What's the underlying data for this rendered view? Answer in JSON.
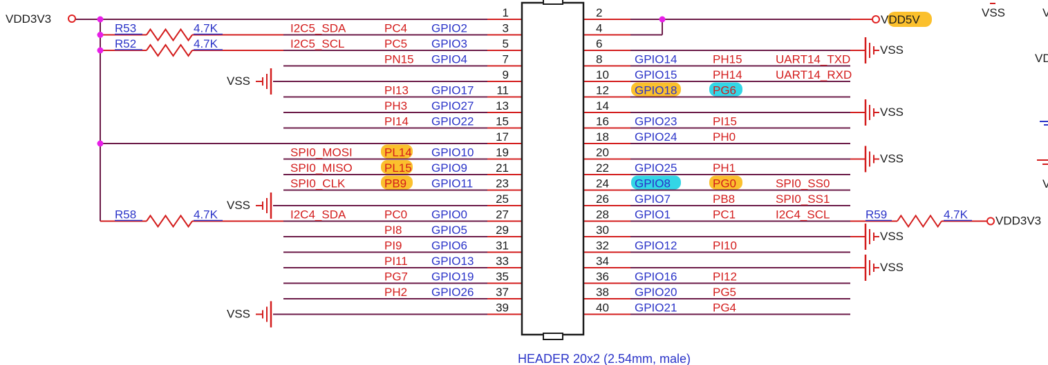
{
  "header": {
    "caption": "HEADER 20x2 (2.54mm, male)",
    "pins_left": [
      {
        "num": "1",
        "fn": "",
        "port": "",
        "gpio": ""
      },
      {
        "num": "3",
        "fn": "I2C5_SDA",
        "port": "PC4",
        "gpio": "GPIO2"
      },
      {
        "num": "5",
        "fn": "I2C5_SCL",
        "port": "PC5",
        "gpio": "GPIO3"
      },
      {
        "num": "7",
        "fn": "",
        "port": "PN15",
        "gpio": "GPIO4"
      },
      {
        "num": "9",
        "fn": "",
        "port": "",
        "gpio": ""
      },
      {
        "num": "11",
        "fn": "",
        "port": "PI13",
        "gpio": "GPIO17"
      },
      {
        "num": "13",
        "fn": "",
        "port": "PH3",
        "gpio": "GPIO27"
      },
      {
        "num": "15",
        "fn": "",
        "port": "PI14",
        "gpio": "GPIO22"
      },
      {
        "num": "17",
        "fn": "",
        "port": "",
        "gpio": ""
      },
      {
        "num": "19",
        "fn": "SPI0_MOSI",
        "port": "PL14",
        "gpio": "GPIO10",
        "port_hl": "orange"
      },
      {
        "num": "21",
        "fn": "SPI0_MISO",
        "port": "PL15",
        "gpio": "GPIO9",
        "port_hl": "orange"
      },
      {
        "num": "23",
        "fn": "SPI0_CLK",
        "port": "PB9",
        "gpio": "GPIO11",
        "port_hl": "orange"
      },
      {
        "num": "25",
        "fn": "",
        "port": "",
        "gpio": ""
      },
      {
        "num": "27",
        "fn": "I2C4_SDA",
        "port": "PC0",
        "gpio": "GPIO0"
      },
      {
        "num": "29",
        "fn": "",
        "port": "PI8",
        "gpio": "GPIO5"
      },
      {
        "num": "31",
        "fn": "",
        "port": "PI9",
        "gpio": "GPIO6"
      },
      {
        "num": "33",
        "fn": "",
        "port": "PI11",
        "gpio": "GPIO13"
      },
      {
        "num": "35",
        "fn": "",
        "port": "PG7",
        "gpio": "GPIO19"
      },
      {
        "num": "37",
        "fn": "",
        "port": "PH2",
        "gpio": "GPIO26"
      },
      {
        "num": "39",
        "fn": "",
        "port": "",
        "gpio": ""
      }
    ],
    "pins_right": [
      {
        "num": "2",
        "gpio": "",
        "port": "",
        "fn": ""
      },
      {
        "num": "4",
        "gpio": "",
        "port": "",
        "fn": ""
      },
      {
        "num": "6",
        "gpio": "",
        "port": "",
        "fn": ""
      },
      {
        "num": "8",
        "gpio": "GPIO14",
        "port": "PH15",
        "fn": "UART14_TXD"
      },
      {
        "num": "10",
        "gpio": "GPIO15",
        "port": "PH14",
        "fn": "UART14_RXD"
      },
      {
        "num": "12",
        "gpio": "GPIO18",
        "port": "PG6",
        "fn": "",
        "gpio_hl": "orange",
        "port_hl": "cyan"
      },
      {
        "num": "14",
        "gpio": "",
        "port": "",
        "fn": ""
      },
      {
        "num": "16",
        "gpio": "GPIO23",
        "port": "PI15",
        "fn": ""
      },
      {
        "num": "18",
        "gpio": "GPIO24",
        "port": "PH0",
        "fn": ""
      },
      {
        "num": "20",
        "gpio": "",
        "port": "",
        "fn": ""
      },
      {
        "num": "22",
        "gpio": "GPIO25",
        "port": "PH1",
        "fn": ""
      },
      {
        "num": "24",
        "gpio": "GPIO8",
        "port": "PG0",
        "fn": "SPI0_SS0",
        "gpio_hl": "cyan",
        "port_hl": "orange"
      },
      {
        "num": "26",
        "gpio": "GPIO7",
        "port": "PB8",
        "fn": "SPI0_SS1"
      },
      {
        "num": "28",
        "gpio": "GPIO1",
        "port": "PC1",
        "fn": "I2C4_SCL"
      },
      {
        "num": "30",
        "gpio": "",
        "port": "",
        "fn": ""
      },
      {
        "num": "32",
        "gpio": "GPIO12",
        "port": "PI10",
        "fn": ""
      },
      {
        "num": "34",
        "gpio": "",
        "port": "",
        "fn": ""
      },
      {
        "num": "36",
        "gpio": "GPIO16",
        "port": "PI12",
        "fn": ""
      },
      {
        "num": "38",
        "gpio": "GPIO20",
        "port": "PG5",
        "fn": ""
      },
      {
        "num": "40",
        "gpio": "GPIO21",
        "port": "PG4",
        "fn": ""
      }
    ]
  },
  "power": {
    "vdd3v3_left": "VDD3V3",
    "vdd5v": "VDD5V",
    "vdd3v3_right": "VDD3V3",
    "vss": "VSS",
    "edge_vss": "VSS",
    "edge_v1": "V",
    "edge_v2": "VD",
    "edge_v3": "V"
  },
  "resistors": [
    {
      "ref": "R53",
      "value": "4.7K"
    },
    {
      "ref": "R52",
      "value": "4.7K"
    },
    {
      "ref": "R58",
      "value": "4.7K"
    },
    {
      "ref": "R59",
      "value": "4.7K"
    }
  ],
  "colors": {
    "wire": "#6b1a47",
    "stub": "#d31c1c",
    "port_text": "#d31c1c",
    "gpio_text": "#2a33c8",
    "ref_text": "#2a33c8",
    "fn_text": "#d31c1c",
    "black": "#1a1a1a",
    "junction": "#e81ee8",
    "pwr_circle": "#e02020",
    "hl_orange": "#fbc02d",
    "hl_cyan": "#33d6e6"
  }
}
